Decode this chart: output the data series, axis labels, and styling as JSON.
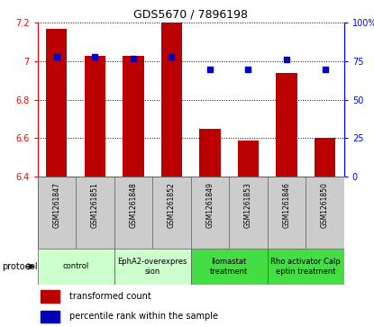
{
  "title": "GDS5670 / 7896198",
  "samples": [
    "GSM1261847",
    "GSM1261851",
    "GSM1261848",
    "GSM1261852",
    "GSM1261849",
    "GSM1261853",
    "GSM1261846",
    "GSM1261850"
  ],
  "transformed_counts": [
    7.17,
    7.03,
    7.03,
    7.22,
    6.65,
    6.59,
    6.94,
    6.6
  ],
  "percentile_ranks": [
    78,
    78,
    77,
    78,
    70,
    70,
    76,
    70
  ],
  "ylim_left": [
    6.4,
    7.2
  ],
  "ylim_right": [
    0,
    100
  ],
  "yticks_left": [
    6.4,
    6.6,
    6.8,
    7.0,
    7.2
  ],
  "yticks_right": [
    0,
    25,
    50,
    75,
    100
  ],
  "ytick_labels_left": [
    "6.4",
    "6.6",
    "6.8",
    "7",
    "7.2"
  ],
  "ytick_labels_right": [
    "0",
    "25",
    "50",
    "75",
    "100%"
  ],
  "bar_color": "#bb0000",
  "dot_color": "#0000bb",
  "bar_width": 0.55,
  "protocols": [
    {
      "label": "control",
      "start": 0,
      "end": 2,
      "color": "#ccffcc"
    },
    {
      "label": "EphA2-overexpres\nsion",
      "start": 2,
      "end": 4,
      "color": "#ccffcc"
    },
    {
      "label": "Ilomastat\ntreatment",
      "start": 4,
      "end": 6,
      "color": "#44dd44"
    },
    {
      "label": "Rho activator Calp\neptin treatment",
      "start": 6,
      "end": 8,
      "color": "#44dd44"
    }
  ],
  "legend_bar_label": "transformed count",
  "legend_dot_label": "percentile rank within the sample",
  "protocol_label": "protocol",
  "sample_bg": "#cccccc",
  "grid_color": "#000000"
}
